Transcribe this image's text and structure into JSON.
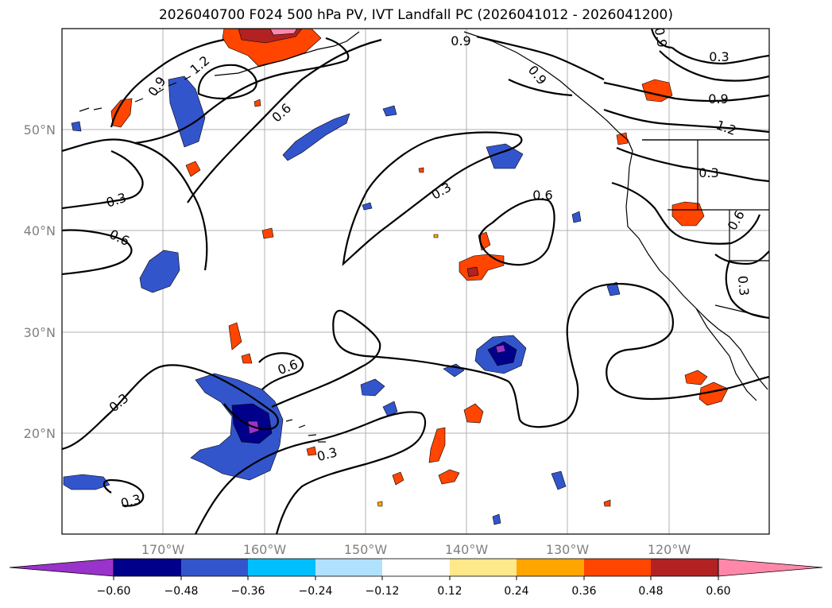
{
  "title": "2026040700 F024 500 hPa PV, IVT Landfall PC (2026041012 - 2026041200)",
  "map": {
    "extent": {
      "lon": [
        -180,
        -110
      ],
      "lat": [
        10,
        60
      ]
    },
    "longitude_ticks": [
      "170°W",
      "160°W",
      "150°W",
      "140°W",
      "130°W",
      "120°W"
    ],
    "latitude_ticks": [
      "50°N",
      "40°N",
      "30°N",
      "20°N"
    ],
    "gridlines": true,
    "contour_labels": [
      "0.9",
      "1.2",
      "0.6",
      "0.3",
      "0.6",
      "0.3",
      "0.6",
      "0.3",
      "0.6",
      "0.3",
      "0.3",
      "0.9",
      "0.3",
      "0.9",
      "1.2",
      "0.3",
      "0.3",
      "0.6",
      "0.9",
      "0.9"
    ]
  },
  "colorbar": {
    "ticks": [
      "−0.60",
      "−0.48",
      "−0.36",
      "−0.24",
      "−0.12",
      "0.12",
      "0.24",
      "0.36",
      "0.48",
      "0.60"
    ],
    "colors": [
      "#9933cc",
      "#00008b",
      "#3355cc",
      "#00bfff",
      "#b0e2ff",
      "#ffffff",
      "#ffe88a",
      "#ffa500",
      "#ff4500",
      "#b22222",
      "#ff88aa"
    ],
    "extend": "both"
  }
}
